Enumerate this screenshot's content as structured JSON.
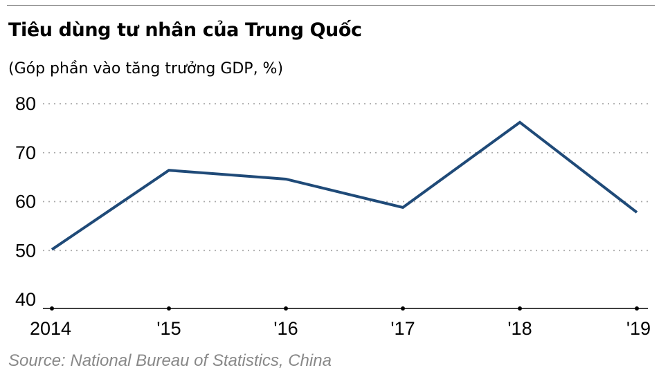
{
  "header": {
    "title": "Tiêu dùng tư nhân của Trung Quốc",
    "subtitle": "(Góp phần vào tăng trưởng GDP, %)"
  },
  "footer": {
    "source": "Source: National Bureau of Statistics, China"
  },
  "chart_data": {
    "type": "line",
    "title": "Tiêu dùng tư nhân của Trung Quốc",
    "subtitle": "(Góp phần vào tăng trưởng GDP, %)",
    "categories": [
      "2014",
      "'15",
      "'16",
      "'17",
      "'18",
      "'19"
    ],
    "series": [
      {
        "values": [
          50.2,
          66.4,
          64.6,
          58.8,
          76.2,
          57.8
        ]
      }
    ],
    "ylim": [
      40,
      80
    ],
    "yticks": [
      40,
      50,
      60,
      70,
      80
    ],
    "grid": "horizontal-dotted",
    "legend": "none",
    "line_color": "#1f4a78"
  }
}
